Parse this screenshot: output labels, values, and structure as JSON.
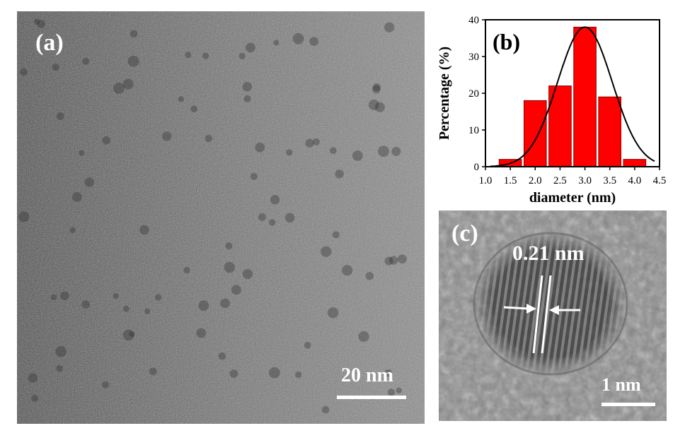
{
  "panel_a": {
    "label": "(a)",
    "scale_text": "20 nm"
  },
  "panel_b": {
    "label": "(b)"
  },
  "panel_c": {
    "label": "(c)",
    "spacing_text": "0.21 nm",
    "scale_text": "1 nm"
  },
  "chart_data": {
    "type": "bar",
    "xlabel": "diameter (nm)",
    "ylabel": "Percentage (%)",
    "xlim": [
      1.0,
      4.5
    ],
    "ylim": [
      0,
      40
    ],
    "xticks": [
      1.0,
      1.5,
      2.0,
      2.5,
      3.0,
      3.5,
      4.0,
      4.5
    ],
    "yticks": [
      0,
      10,
      20,
      30,
      40
    ],
    "bar_width": 0.45,
    "bar_color": "#ff0000",
    "bars": [
      {
        "x": 1.5,
        "value": 2
      },
      {
        "x": 2.0,
        "value": 18
      },
      {
        "x": 2.5,
        "value": 22
      },
      {
        "x": 3.0,
        "value": 38
      },
      {
        "x": 3.5,
        "value": 19
      },
      {
        "x": 4.0,
        "value": 2
      }
    ],
    "fit": {
      "type": "gaussian",
      "center": 3.0,
      "sigma": 0.55,
      "amplitude": 38,
      "color": "#000000"
    },
    "grid": false
  }
}
